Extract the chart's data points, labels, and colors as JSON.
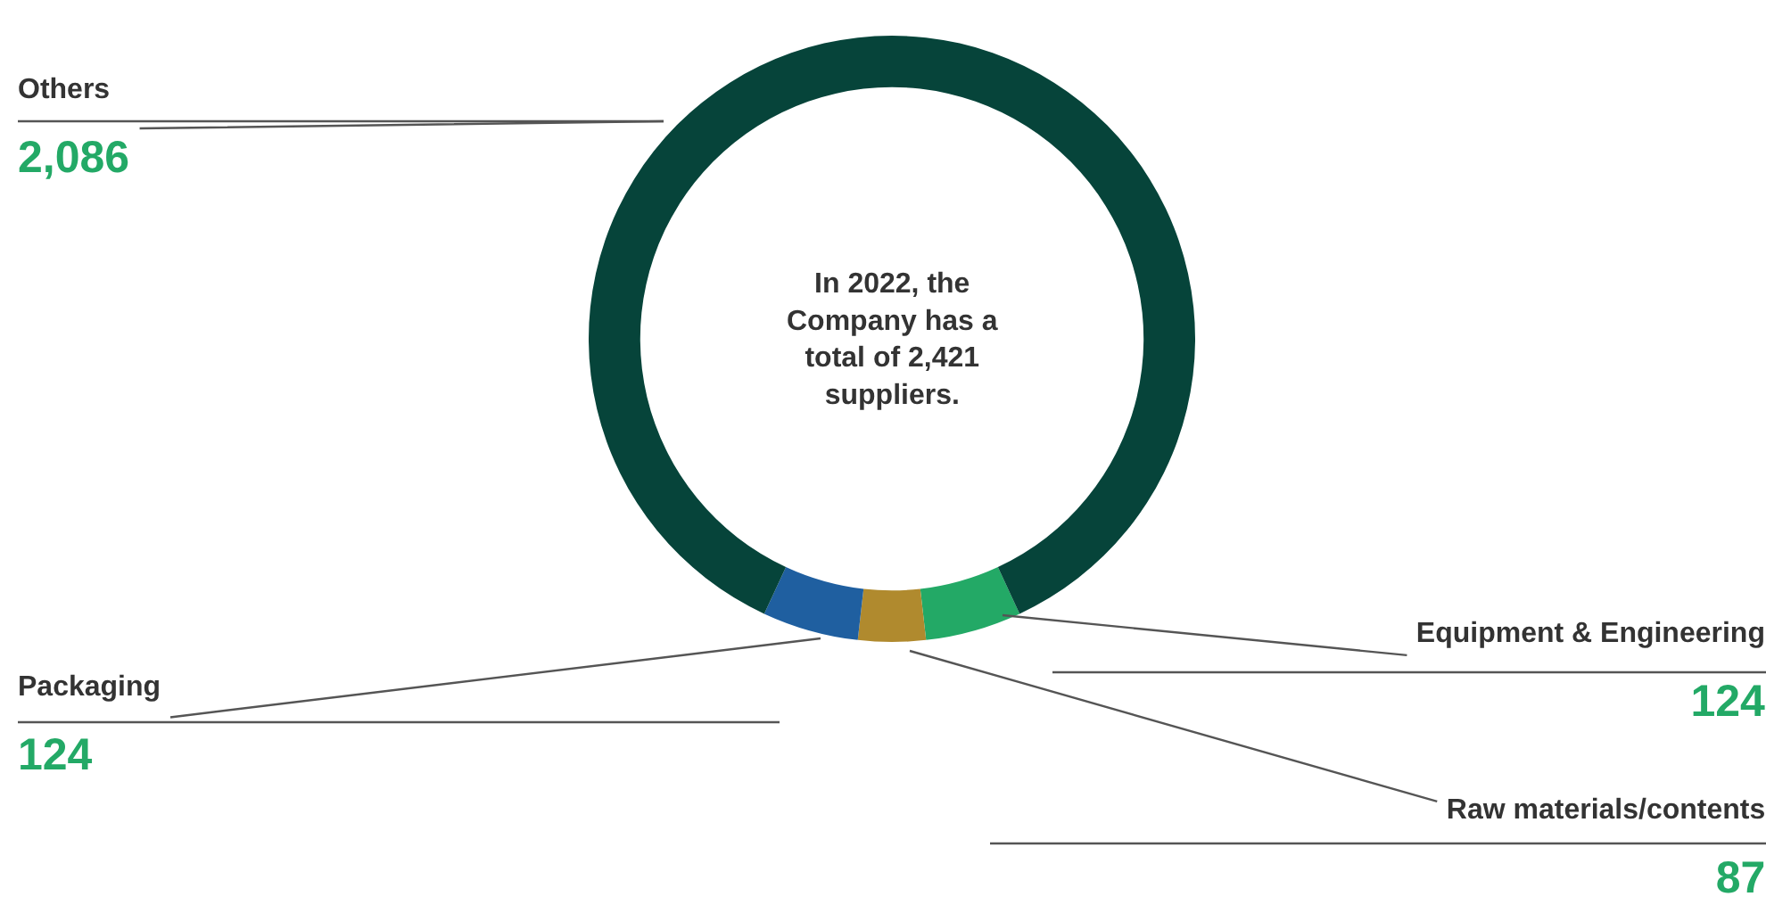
{
  "chart_data": {
    "type": "donut",
    "categories": [
      "Equipment & Engineering",
      "Raw materials/contents",
      "Packaging",
      "Others"
    ],
    "values": [
      124,
      87,
      124,
      2086
    ],
    "colors": [
      "#23a966",
      "#b08a2e",
      "#1f5fa0",
      "#06443a"
    ],
    "value_labels": [
      "124",
      "87",
      "124",
      "2,086"
    ],
    "annotations": [
      "In 2022, the Company has a total of 2,421 suppliers."
    ],
    "legend": false
  }
}
